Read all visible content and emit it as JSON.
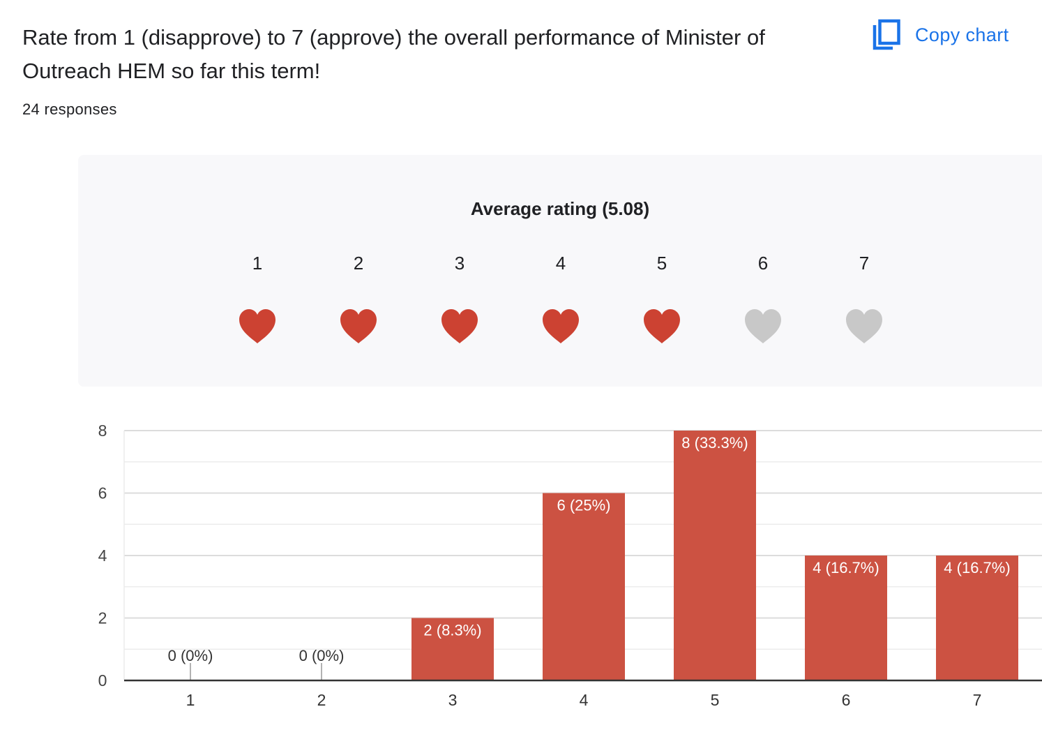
{
  "question": {
    "title": "Rate from 1 (disapprove) to 7 (approve) the overall performance of Minister of Outreach HEM so far this term!",
    "responses": "24 responses",
    "copy_label": "Copy chart"
  },
  "summary": {
    "average_label": "Average rating (5.08)",
    "scale": [
      "1",
      "2",
      "3",
      "4",
      "5",
      "6",
      "7"
    ],
    "filled": 5
  },
  "colors": {
    "accent": "#cc5242",
    "heart_filled": "#cc4232",
    "heart_empty": "#c8c8c8",
    "link": "#1a73e8"
  },
  "chart_data": {
    "type": "bar",
    "categories": [
      "1",
      "2",
      "3",
      "4",
      "5",
      "6",
      "7"
    ],
    "values": [
      0,
      0,
      2,
      6,
      8,
      4,
      4
    ],
    "data_labels": [
      "0 (0%)",
      "0 (0%)",
      "2 (8.3%)",
      "6 (25%)",
      "8 (33.3%)",
      "4 (16.7%)",
      "4 (16.7%)"
    ],
    "y_ticks": [
      0,
      2,
      4,
      6,
      8
    ],
    "ylim": [
      0,
      8
    ],
    "title": "",
    "xlabel": "",
    "ylabel": "",
    "grid": true
  }
}
